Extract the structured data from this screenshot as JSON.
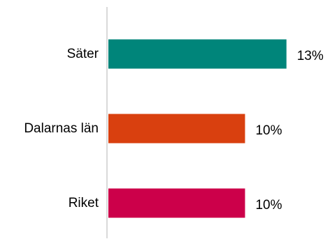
{
  "chart_data": {
    "type": "bar",
    "orientation": "horizontal",
    "categories": [
      "Säter",
      "Dalarnas län",
      "Riket"
    ],
    "values": [
      13,
      10,
      10
    ],
    "value_labels": [
      "13%",
      "10%",
      "10%"
    ],
    "colors": [
      "#00857A",
      "#D9400F",
      "#CC004A"
    ],
    "axis_color": "#D9D9D9",
    "xlim": [
      0,
      15.8
    ],
    "grid": false,
    "legend": "none"
  }
}
